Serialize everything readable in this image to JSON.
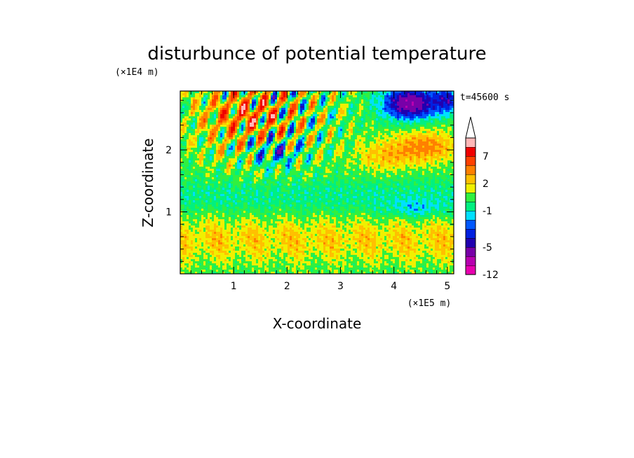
{
  "chart_data": {
    "type": "heatmap",
    "title": "disturbunce of potential temperature",
    "xlabel": "X-coordinate",
    "ylabel": "Z-coordinate",
    "x_unit": "(×1E5 m)",
    "y_unit": "(×1E4 m)",
    "time_label": "t=45600 s",
    "xlim": [
      0,
      5.12
    ],
    "ylim": [
      0,
      2.95
    ],
    "x_ticks": [
      "1",
      "2",
      "3",
      "4",
      "5"
    ],
    "x_tick_values": [
      1,
      2,
      3,
      4,
      5
    ],
    "y_ticks": [
      "1",
      "2"
    ],
    "y_tick_values": [
      1,
      2
    ],
    "colorbar": {
      "levels": [
        -12,
        -9,
        -7,
        -5,
        -4,
        -3,
        -2,
        -1,
        0,
        1,
        2,
        3,
        5,
        7,
        9,
        12
      ],
      "labels": [
        "-12",
        "-5",
        "-1",
        "2",
        "7"
      ],
      "label_values": [
        -12,
        -5,
        -1,
        2,
        7
      ],
      "colors": [
        "#e800b0",
        "#b800b0",
        "#7800a8",
        "#2000b0",
        "#0020e0",
        "#0058ff",
        "#00e0ff",
        "#00f080",
        "#30f040",
        "#f0f000",
        "#ffc000",
        "#ff8000",
        "#ff4000",
        "#f00000",
        "#ffb8b8"
      ],
      "extend": "max"
    }
  }
}
